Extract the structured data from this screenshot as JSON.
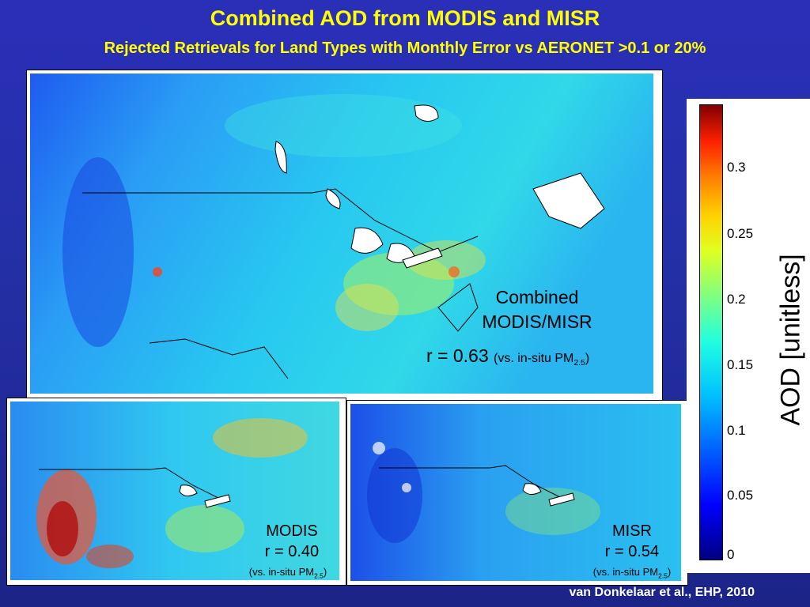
{
  "title": "Combined AOD from MODIS and MISR",
  "subtitle": "Rejected Retrievals for Land Types with Monthly Error vs AERONET >0.1 or 20%",
  "main_map": {
    "label_line1": "Combined",
    "label_line2": "MODIS/MISR",
    "r_text": "r = 0.63",
    "vs_text": "(vs. in-situ PM",
    "vs_sub": "2.5",
    "vs_close": ")"
  },
  "modis_map": {
    "label": "MODIS",
    "r_text": "r = 0.40",
    "vs_text": "(vs. in-situ PM",
    "vs_sub": "2.5",
    "vs_close": ")"
  },
  "misr_map": {
    "label": "MISR",
    "r_text": "r = 0.54",
    "vs_text": "(vs. in-situ PM",
    "vs_sub": "2.5",
    "vs_close": ")"
  },
  "colorbar": {
    "label": "AOD [unitless]",
    "ticks": [
      "0.3",
      "0.25",
      "0.2",
      "0.15",
      "0.1",
      "0.05",
      "0"
    ],
    "colormap": "jet"
  },
  "citation": "van Donkelaar et al., EHP, 2010"
}
